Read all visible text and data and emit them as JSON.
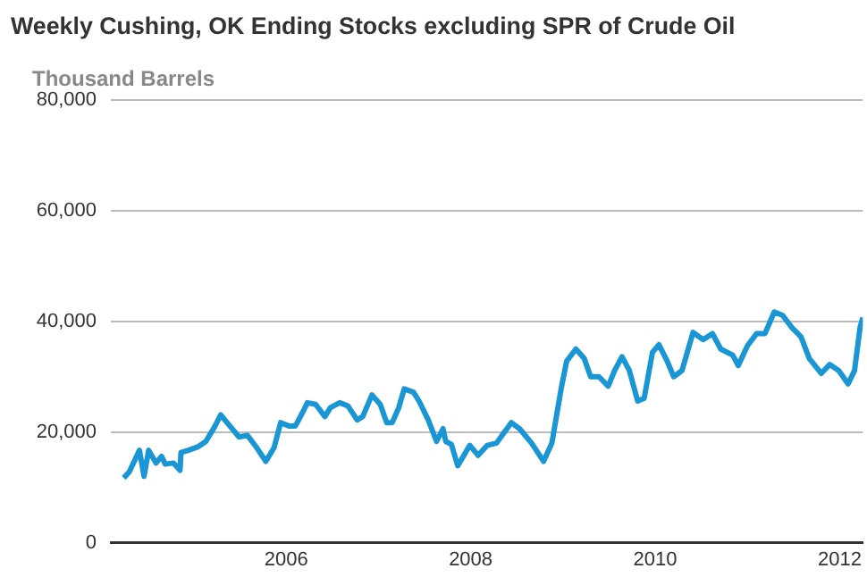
{
  "chart_data": {
    "type": "line",
    "title": "Weekly Cushing, OK Ending Stocks excluding SPR of Crude Oil",
    "ylabel": "Thousand Barrels",
    "x": [
      2004.24,
      2004.3,
      2004.41,
      2004.46,
      2004.51,
      2004.59,
      2004.65,
      2004.69,
      2004.78,
      2004.85,
      2004.86,
      2004.94,
      2005.04,
      2005.13,
      2005.23,
      2005.29,
      2005.39,
      2005.49,
      2005.58,
      2005.68,
      2005.78,
      2005.87,
      2005.94,
      2006.03,
      2006.1,
      2006.19,
      2006.23,
      2006.32,
      2006.42,
      2006.48,
      2006.58,
      2006.67,
      2006.77,
      2006.83,
      2006.93,
      2007.02,
      2007.09,
      2007.15,
      2007.22,
      2007.28,
      2007.38,
      2007.44,
      2007.54,
      2007.63,
      2007.7,
      2007.73,
      2007.79,
      2007.86,
      2007.99,
      2008.08,
      2008.18,
      2008.28,
      2008.44,
      2008.53,
      2008.66,
      2008.79,
      2008.88,
      2008.98,
      2009.04,
      2009.14,
      2009.23,
      2009.3,
      2009.39,
      2009.49,
      2009.56,
      2009.64,
      2009.72,
      2009.81,
      2009.88,
      2009.97,
      2010.04,
      2010.13,
      2010.2,
      2010.29,
      2010.41,
      2010.52,
      2010.62,
      2010.71,
      2010.84,
      2010.9,
      2011.0,
      2011.1,
      2011.19,
      2011.29,
      2011.38,
      2011.48,
      2011.58,
      2011.67,
      2011.8,
      2011.89,
      2011.99,
      2012.09,
      2012.16,
      2012.22,
      2012.25
    ],
    "series": [
      {
        "color": "#1a96d4",
        "values": [
          11700,
          12800,
          16700,
          12000,
          16700,
          14400,
          15600,
          14200,
          14400,
          13100,
          16300,
          16700,
          17300,
          18300,
          21100,
          23100,
          21100,
          19100,
          19400,
          17200,
          14700,
          17200,
          21700,
          21100,
          21100,
          23900,
          25300,
          25000,
          22800,
          24400,
          25300,
          24700,
          22200,
          22800,
          26700,
          25000,
          21700,
          21700,
          24400,
          27800,
          27200,
          25600,
          22200,
          18300,
          20600,
          18300,
          17800,
          13900,
          17600,
          15800,
          17600,
          18000,
          21700,
          20600,
          18000,
          14700,
          18000,
          27800,
          32800,
          35000,
          33300,
          30000,
          30000,
          28300,
          31100,
          33600,
          31100,
          25600,
          26100,
          34400,
          35800,
          32800,
          30000,
          31100,
          38000,
          36700,
          37800,
          35000,
          33900,
          32000,
          35600,
          37800,
          37800,
          41700,
          41100,
          38900,
          37200,
          33300,
          30600,
          32200,
          31100,
          28700,
          31100,
          38900,
          40700
        ]
      }
    ],
    "xlim": [
      2004.1,
      2012.25
    ],
    "xticks": [
      2006,
      2008,
      2010,
      2012
    ],
    "ylim": [
      0,
      80000
    ],
    "yticks": [
      {
        "value": 0,
        "label": "0"
      },
      {
        "value": 20000,
        "label": "20,000"
      },
      {
        "value": 40000,
        "label": "40,000"
      },
      {
        "value": 60000,
        "label": "60,000"
      },
      {
        "value": 80000,
        "label": "80,000"
      }
    ],
    "grid": "y",
    "legend": false,
    "marker": "none",
    "line_style": "solid"
  }
}
